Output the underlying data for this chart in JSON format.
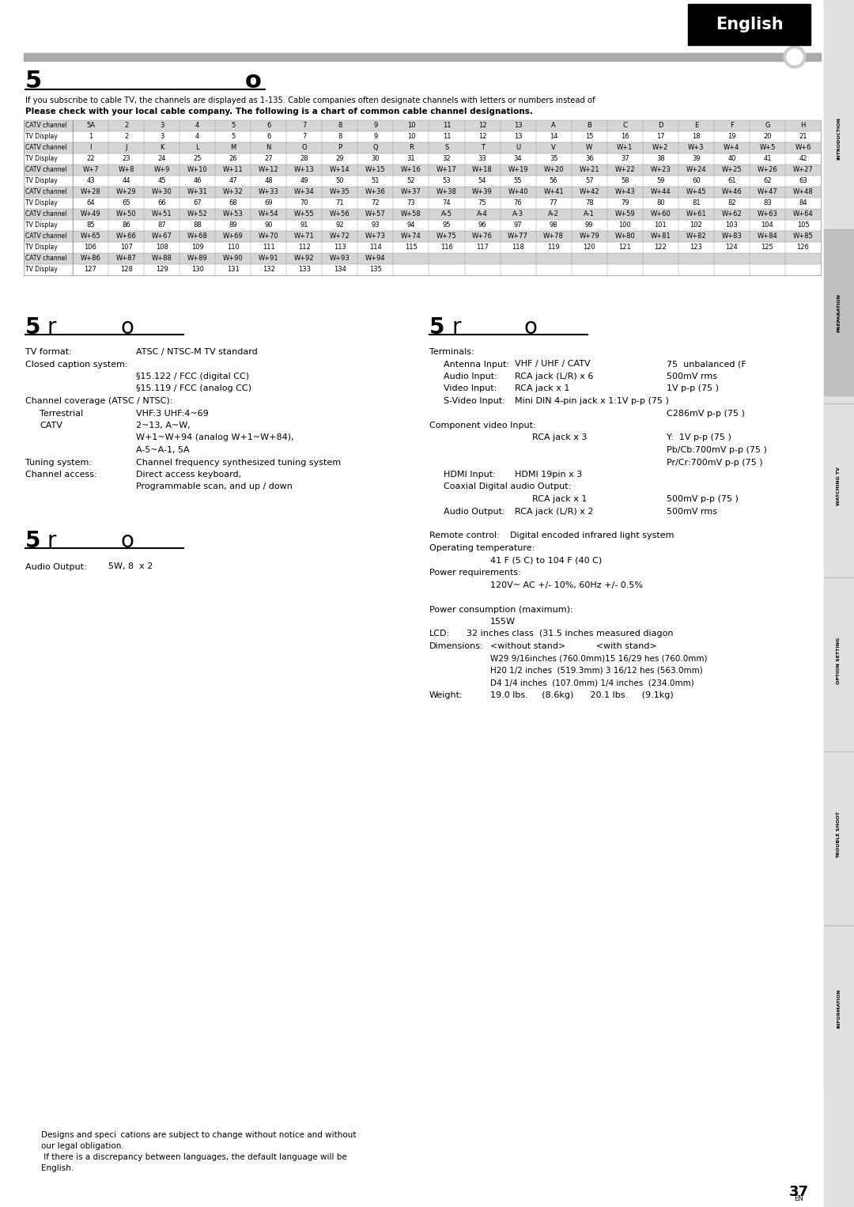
{
  "table_rows": [
    [
      "CATV channel",
      "5A",
      "2",
      "3",
      "4",
      "5",
      "6",
      "7",
      "8",
      "9",
      "10",
      "11",
      "12",
      "13",
      "A",
      "B",
      "C",
      "D",
      "E",
      "F",
      "G",
      "H"
    ],
    [
      "TV Display",
      "1",
      "2",
      "3",
      "4",
      "5",
      "6",
      "7",
      "8",
      "9",
      "10",
      "11",
      "12",
      "13",
      "14",
      "15",
      "16",
      "17",
      "18",
      "19",
      "20",
      "21"
    ],
    [
      "CATV channel",
      "I",
      "J",
      "K",
      "L",
      "M",
      "N",
      "O",
      "P",
      "Q",
      "R",
      "S",
      "T",
      "U",
      "V",
      "W",
      "W+1",
      "W+2",
      "W+3",
      "W+4",
      "W+5",
      "W+6"
    ],
    [
      "TV Display",
      "22",
      "23",
      "24",
      "25",
      "26",
      "27",
      "28",
      "29",
      "30",
      "31",
      "32",
      "33",
      "34",
      "35",
      "36",
      "37",
      "38",
      "39",
      "40",
      "41",
      "42"
    ],
    [
      "CATV channel",
      "W+7",
      "W+8",
      "W+9",
      "W+10",
      "W+11",
      "W+12",
      "W+13",
      "W+14",
      "W+15",
      "W+16",
      "W+17",
      "W+18",
      "W+19",
      "W+20",
      "W+21",
      "W+22",
      "W+23",
      "W+24",
      "W+25",
      "W+26",
      "W+27"
    ],
    [
      "TV Display",
      "43",
      "44",
      "45",
      "46",
      "47",
      "48",
      "49",
      "50",
      "51",
      "52",
      "53",
      "54",
      "55",
      "56",
      "57",
      "58",
      "59",
      "60",
      "61",
      "62",
      "63"
    ],
    [
      "CATV channel",
      "W+28",
      "W+29",
      "W+30",
      "W+31",
      "W+32",
      "W+33",
      "W+34",
      "W+35",
      "W+36",
      "W+37",
      "W+38",
      "W+39",
      "W+40",
      "W+41",
      "W+42",
      "W+43",
      "W+44",
      "W+45",
      "W+46",
      "W+47",
      "W+48"
    ],
    [
      "TV Display",
      "64",
      "65",
      "66",
      "67",
      "68",
      "69",
      "70",
      "71",
      "72",
      "73",
      "74",
      "75",
      "76",
      "77",
      "78",
      "79",
      "80",
      "81",
      "82",
      "83",
      "84"
    ],
    [
      "CATV channel",
      "W+49",
      "W+50",
      "W+51",
      "W+52",
      "W+53",
      "W+54",
      "W+55",
      "W+56",
      "W+57",
      "W+58",
      "A-5",
      "A-4",
      "A-3",
      "A-2",
      "A-1",
      "W+59",
      "W+60",
      "W+61",
      "W+62",
      "W+63",
      "W+64"
    ],
    [
      "TV Display",
      "85",
      "86",
      "87",
      "88",
      "89",
      "90",
      "91",
      "92",
      "93",
      "94",
      "95",
      "96",
      "97",
      "98",
      "99",
      "100",
      "101",
      "102",
      "103",
      "104",
      "105"
    ],
    [
      "CATV channel",
      "W+65",
      "W+66",
      "W+67",
      "W+68",
      "W+69",
      "W+70",
      "W+71",
      "W+72",
      "W+73",
      "W+74",
      "W+75",
      "W+76",
      "W+77",
      "W+78",
      "W+79",
      "W+80",
      "W+81",
      "W+82",
      "W+83",
      "W+84",
      "W+85"
    ],
    [
      "TV Display",
      "106",
      "107",
      "108",
      "109",
      "110",
      "111",
      "112",
      "113",
      "114",
      "115",
      "116",
      "117",
      "118",
      "119",
      "120",
      "121",
      "122",
      "123",
      "124",
      "125",
      "126"
    ],
    [
      "CATV channel",
      "W+86",
      "W+87",
      "W+88",
      "W+89",
      "W+90",
      "W+91",
      "W+92",
      "W+93",
      "W+94",
      "",
      "",
      "",
      "",
      "",
      "",
      "",
      "",
      "",
      "",
      "",
      ""
    ],
    [
      "TV Display",
      "127",
      "128",
      "129",
      "130",
      "131",
      "132",
      "133",
      "134",
      "135",
      "",
      "",
      "",
      "",
      "",
      "",
      "",
      "",
      "",
      "",
      "",
      ""
    ]
  ],
  "side_labels": [
    "INTRODUCTION",
    "PREPARATION",
    "WATCHING TV",
    "OPTION SETTING",
    "TROUBLE SHOOT",
    "INFORMATION"
  ],
  "bg_color": "#ffffff",
  "table_catv_bg": "#d5d5d5",
  "table_tv_bg": "#ffffff",
  "english_tab_bg": "#000000",
  "english_tab_text": "English",
  "gray_bar_color": "#aaaaaa",
  "page_number": "37"
}
